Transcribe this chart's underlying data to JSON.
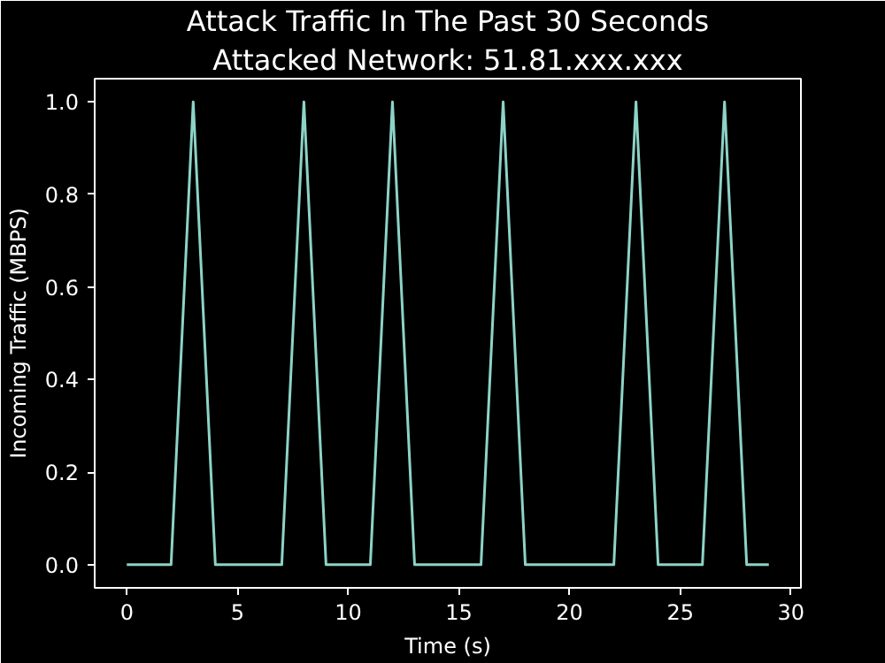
{
  "chart_data": {
    "type": "line",
    "title": "Attack Traffic In The Past 30 Seconds",
    "subtitle": "Attacked Network: 51.81.xxx.xxx",
    "xlabel": "Time (s)",
    "ylabel": "Incoming Traffic (MBPS)",
    "x": [
      0,
      1,
      2,
      3,
      4,
      5,
      6,
      7,
      8,
      9,
      10,
      11,
      12,
      13,
      14,
      15,
      16,
      17,
      18,
      19,
      20,
      21,
      22,
      23,
      24,
      25,
      26,
      27,
      28,
      29
    ],
    "series": [
      {
        "color": "#8dd3c7",
        "values": [
          0,
          0,
          0,
          1,
          0,
          0,
          0,
          0,
          1,
          0,
          0,
          0,
          1,
          0,
          0,
          0,
          0,
          1,
          0,
          0,
          0,
          0,
          0,
          1,
          0,
          0,
          0,
          1,
          0,
          0
        ]
      }
    ],
    "xlim": [
      -1.45,
      30.45
    ],
    "ylim": [
      -0.05,
      1.05
    ],
    "xticks": [
      0,
      5,
      10,
      15,
      20,
      25,
      30
    ],
    "yticks": [
      {
        "value": 0,
        "label": "0.0"
      },
      {
        "value": 0.2,
        "label": "0.2"
      },
      {
        "value": 0.4,
        "label": "0.4"
      },
      {
        "value": 0.6,
        "label": "0.6"
      },
      {
        "value": 0.8,
        "label": "0.8"
      },
      {
        "value": 1,
        "label": "1.0"
      }
    ],
    "grid": false,
    "marker": "none",
    "line_style": "solid"
  }
}
